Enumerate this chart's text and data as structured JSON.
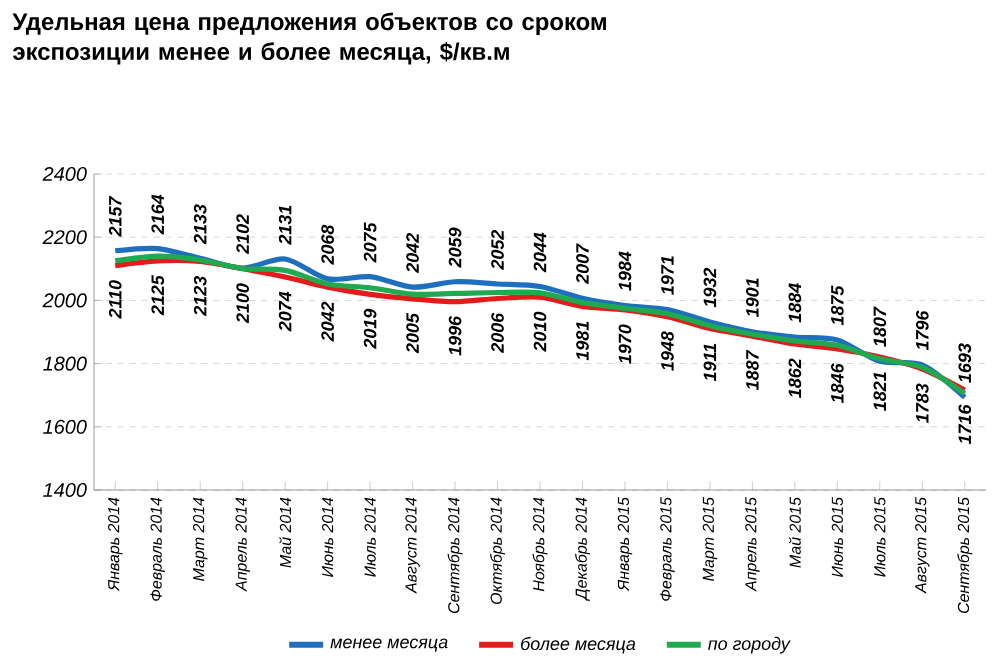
{
  "chart_data": {
    "type": "line",
    "title": "Удельная цена предложения  объектов со сроком экспозиции менее и более месяца, $/кв.м",
    "categories": [
      "Январь 2014",
      "Февраль 2014",
      "Март 2014",
      "Апрель 2014",
      "Май 2014",
      "Июнь 2014",
      "Июль 2014",
      "Август 2014",
      "Сентябрь 2014",
      "Октябрь 2014",
      "Ноябрь 2014",
      "Декабрь 2014",
      "Январь 2015",
      "Февраль 2015",
      "Март 2015",
      "Апрель 2015",
      "Май 2015",
      "Июнь 2015",
      "Июль 2015",
      "Август 2015",
      "Сентябрь 2015"
    ],
    "series": [
      {
        "name": "менее месяца",
        "color": "#1f6fbf",
        "data_labels": true,
        "values": [
          2157,
          2164,
          2133,
          2102,
          2131,
          2068,
          2075,
          2042,
          2059,
          2052,
          2044,
          2007,
          1984,
          1971,
          1932,
          1901,
          1884,
          1875,
          1807,
          1796,
          1693
        ]
      },
      {
        "name": "более месяца",
        "color": "#e31b1b",
        "data_labels": true,
        "values": [
          2110,
          2125,
          2123,
          2100,
          2074,
          2042,
          2019,
          2005,
          1996,
          2006,
          2010,
          1981,
          1970,
          1948,
          1911,
          1887,
          1862,
          1846,
          1821,
          1783,
          1716
        ]
      },
      {
        "name": "по городу",
        "color": "#1faa50",
        "values": [
          2125,
          2140,
          2128,
          2101,
          2095,
          2052,
          2040,
          2020,
          2022,
          2025,
          2024,
          1993,
          1975,
          1958,
          1920,
          1893,
          1872,
          1858,
          1815,
          1788,
          1705
        ]
      }
    ],
    "ylim": [
      1400,
      2400
    ],
    "yticks": [
      1400,
      1600,
      1800,
      2000,
      2200,
      2400
    ],
    "grid": "y",
    "legend": "bottom",
    "marker": "none",
    "line_style": "solid"
  }
}
